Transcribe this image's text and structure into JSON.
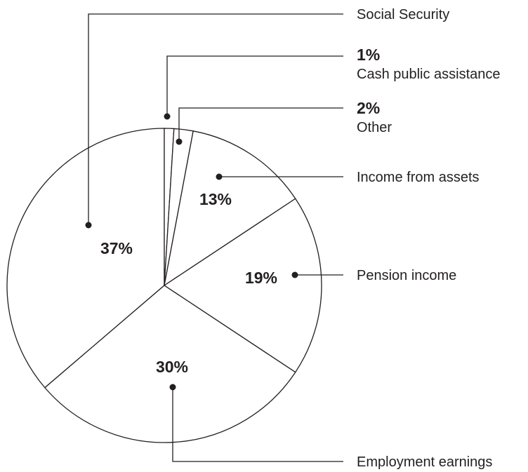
{
  "chart_data": {
    "type": "pie",
    "title": "",
    "slices": [
      {
        "label": "Social Security",
        "value": 37,
        "value_label": "37%"
      },
      {
        "label": "Cash public assistance",
        "value": 1,
        "value_label": "1%"
      },
      {
        "label": "Other",
        "value": 2,
        "value_label": "2%"
      },
      {
        "label": "Income from assets",
        "value": 13,
        "value_label": "13%"
      },
      {
        "label": "Pension income",
        "value": 19,
        "value_label": "19%"
      },
      {
        "label": "Employment earnings",
        "value": 30,
        "value_label": "30%"
      }
    ],
    "fill_color": "#ffffff",
    "stroke_color": "#231f20",
    "legend": "none",
    "callouts": "leader lines to right-side labels"
  }
}
